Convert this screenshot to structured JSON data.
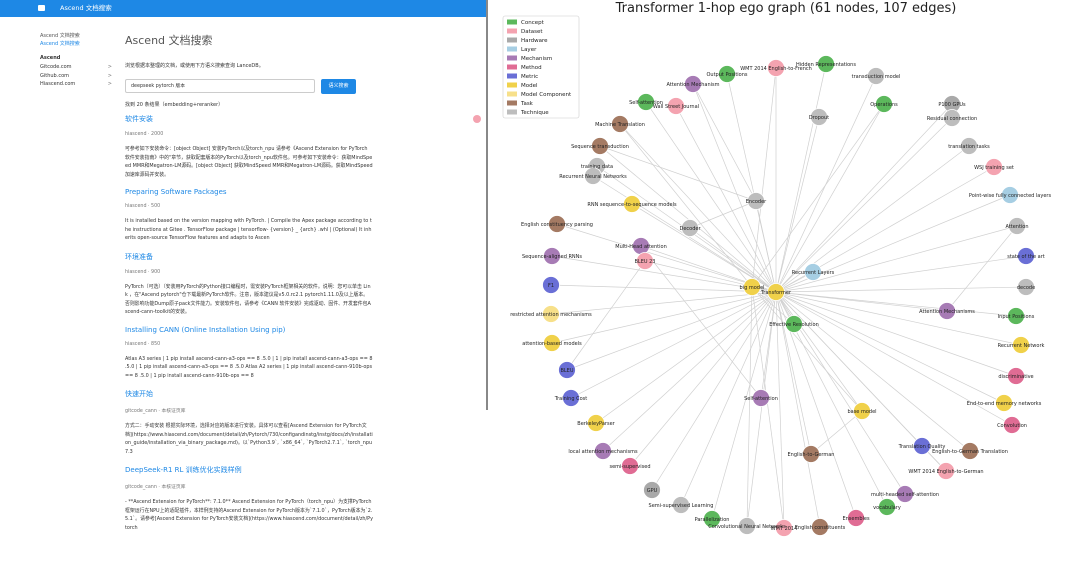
{
  "header": {
    "title": "Ascend 文档搜索"
  },
  "sidebar": {
    "links": [
      "Ascend 文档搜索",
      "Ascend 文档搜索"
    ],
    "section": "Ascend",
    "items": [
      "Gitcode.com",
      "Github.com",
      "Hiascend.com"
    ]
  },
  "main": {
    "title": "Ascend 文档搜索",
    "description": "浏览根据本整理的文档，或使用下方语义搜索查询 LanceDB。",
    "search_value": "deepseek pytorch 版本",
    "search_button": "语义搜索",
    "result_count": "找到 20 条结果（embedding+reranker）",
    "results": [
      {
        "title": "软件安装",
        "meta": "hiascend · 2000",
        "body": "可参考如下安装命令：[object Object] 安装PyTorch以及torch_npu 请参考《Ascend Extension for PyTorch 软件安装指南》中的\"章节，获取配套版本的PyTorch以及torch_npu软件包。可参考如下安装命令：获取MindSpeed MMR和Megatron-LM源码。[object Object] 获取MindSpeed MMR和Megatron-LM源码。获取MindSpeed加速库源码并安装。"
      },
      {
        "title": "Preparing Software Packages",
        "meta": "hiascend · 500",
        "body": "It is installed based on the version mapping with PyTorch. | Compile the Apex package according to the instructions at Gitee . TensorFlow package | tensorflow- {version} _ {arch} .whl | (Optional) It inherits open-source TensorFlow features and adapts to Ascen"
      },
      {
        "title": "环境准备",
        "meta": "hiascend · 900",
        "body": "PyTorch（可选）（安装用PyTorch的Python接口编程时，需安装PyTorch框架相关的软件。说明：您可以单击 Link ，在\"Ascend pytorch\"仓下载最新PyTorch软件。注意，版本建议是v5.0.rc2.1 pytorch1.11.0及以上版本。否则影响功能Dump原子pack文件能力。安装软件包，请参考《CANN 软件安装》完成驱动、固件、开发套件包Ascend-cann-toolkit的安装。"
      },
      {
        "title": "Installing CANN (Online Installation Using pip)",
        "meta": "hiascend · 850",
        "body": "Atlas A3 series | 1 pip install ascend-cann-a3-ops == 8 .5.0 | 1 | pip install ascend-cann-a3-ops == 8 .5.0 | 1 pip install ascend-cann-a3-ops == 8 .5.0 Atlas A2 series | 1 pip install ascend-cann-910b-ops == 8 .5.0 | 1 pip install ascend-cann-910b-ops == 8"
      },
      {
        "title": "快速开始",
        "meta": "gitcode_cann · 本核证页库",
        "body": "方式二：手动安装 根据实际环境，选择对应的版本进行安装。具体可以查看[Ascend Extension for PyTorch文档](https://www.hiascend.com/document/detail/zh/Pytorch/730/configandinstg/instg/docs/zh/installation_guide/installation_via_binary_package.md)。以`Python3.9`, `x86_64`, `PyTorch2.7.1`, `torch_npu7.3"
      },
      {
        "title": "DeepSeek-R1 RL 训练优化实践样例",
        "meta": "gitcode_cann · 本核证页库",
        "body": "- **Ascend Extension for PyTorch**: 7.1.0** Ascend Extension for PyTorch（torch_npu）为支撑PyTorch框架运行在NPU上的适配插件，本样例支持的Ascend Extension for PyTorch版本为`7.1.0`，PyTorch版本为`2.5.1`。请参考[Ascend Extension for PyTorch安装文档](https://www.hiascend.com/document/detail/zh/Pytorch"
      }
    ]
  },
  "graph": {
    "title": "Transformer  1-hop ego graph (61 nodes, 107 edges)",
    "legend": [
      {
        "name": "Concept",
        "color": "#5cb85c"
      },
      {
        "name": "Dataset",
        "color": "#f4a3b0"
      },
      {
        "name": "Hardware",
        "color": "#a9a9a9"
      },
      {
        "name": "Layer",
        "color": "#a6cee3"
      },
      {
        "name": "Mechanism",
        "color": "#a77bb5"
      },
      {
        "name": "Method",
        "color": "#e06c94"
      },
      {
        "name": "Metric",
        "color": "#6a6fd6"
      },
      {
        "name": "Model",
        "color": "#f0d14a"
      },
      {
        "name": "Model Component",
        "color": "#f7e08a"
      },
      {
        "name": "Task",
        "color": "#a47a63"
      },
      {
        "name": "Technique",
        "color": "#bdbdbd"
      }
    ],
    "nodes": [
      {
        "label": "Transformer",
        "category": "Model"
      },
      {
        "label": "big model",
        "category": "Model"
      },
      {
        "label": "Hidden Representations",
        "category": "Concept"
      },
      {
        "label": "WMT 2014 English-to-French",
        "category": "Dataset"
      },
      {
        "label": "Output Positions",
        "category": "Concept"
      },
      {
        "label": "Attention Mechanism",
        "category": "Mechanism"
      },
      {
        "label": "transduction model",
        "category": "Technique"
      },
      {
        "label": "Self-attention",
        "category": "Concept"
      },
      {
        "label": "Wall Street Journal",
        "category": "Dataset"
      },
      {
        "label": "Operations",
        "category": "Concept"
      },
      {
        "label": "P100 GPUs",
        "category": "Hardware"
      },
      {
        "label": "Dropout",
        "category": "Technique"
      },
      {
        "label": "Residual connection",
        "category": "Technique"
      },
      {
        "label": "Machine Translation",
        "category": "Task"
      },
      {
        "label": "Sequence transduction",
        "category": "Task"
      },
      {
        "label": "translation tasks",
        "category": "Technique"
      },
      {
        "label": "training data",
        "category": "Technique"
      },
      {
        "label": "Recurrent Neural Networks",
        "category": "Technique"
      },
      {
        "label": "WSJ training set",
        "category": "Dataset"
      },
      {
        "label": "Point-wise fully connected layers",
        "category": "Layer"
      },
      {
        "label": "Encoder",
        "category": "Technique"
      },
      {
        "label": "RNN sequence-to-sequence models",
        "category": "Model"
      },
      {
        "label": "English constituency parsing",
        "category": "Task"
      },
      {
        "label": "Decoder",
        "category": "Technique"
      },
      {
        "label": "Attention",
        "category": "Technique"
      },
      {
        "label": "Multi-Head attention",
        "category": "Mechanism"
      },
      {
        "label": "Sequence-aligned RNNs",
        "category": "Mechanism"
      },
      {
        "label": "state of the art",
        "category": "Metric"
      },
      {
        "label": "BLEU 23",
        "category": "Dataset"
      },
      {
        "label": "Recurrent Layers",
        "category": "Layer"
      },
      {
        "label": "F1",
        "category": "Metric"
      },
      {
        "label": "decode",
        "category": "Technique"
      },
      {
        "label": "restricted attention mechanisms",
        "category": "Model Component"
      },
      {
        "label": "Attention Mechanisms",
        "category": "Mechanism"
      },
      {
        "label": "Input Positions",
        "category": "Concept"
      },
      {
        "label": "Effective Resolution",
        "category": "Concept"
      },
      {
        "label": "attention-based models",
        "category": "Model"
      },
      {
        "label": "Recurrent Network",
        "category": "Model"
      },
      {
        "label": "BLEU",
        "category": "Metric"
      },
      {
        "label": "discriminative",
        "category": "Method"
      },
      {
        "label": "Training Cost",
        "category": "Metric"
      },
      {
        "label": "Self-attention",
        "category": "Mechanism"
      },
      {
        "label": "End-to-end memory networks",
        "category": "Model"
      },
      {
        "label": "base model",
        "category": "Model"
      },
      {
        "label": "Convolution",
        "category": "Method"
      },
      {
        "label": "BerkeleyParser",
        "category": "Model"
      },
      {
        "label": "Translation Quality",
        "category": "Metric"
      },
      {
        "label": "English-to-German Translation",
        "category": "Task"
      },
      {
        "label": "local attention mechanisms",
        "category": "Mechanism"
      },
      {
        "label": "English-to-German",
        "category": "Task"
      },
      {
        "label": "semi-supervised",
        "category": "Method"
      },
      {
        "label": "WMT 2014 English-to-German",
        "category": "Dataset"
      },
      {
        "label": "GPU",
        "category": "Hardware"
      },
      {
        "label": "multi-headed self-attention",
        "category": "Mechanism"
      },
      {
        "label": "Semi-supervised Learning",
        "category": "Technique"
      },
      {
        "label": "vocabulary",
        "category": "Concept"
      },
      {
        "label": "Parallelization",
        "category": "Concept"
      },
      {
        "label": "Ensembles",
        "category": "Method"
      },
      {
        "label": "Convolutional Neural Networks",
        "category": "Technique"
      },
      {
        "label": "WMT 2014",
        "category": "Dataset"
      },
      {
        "label": "English constituents",
        "category": "Task"
      }
    ]
  }
}
